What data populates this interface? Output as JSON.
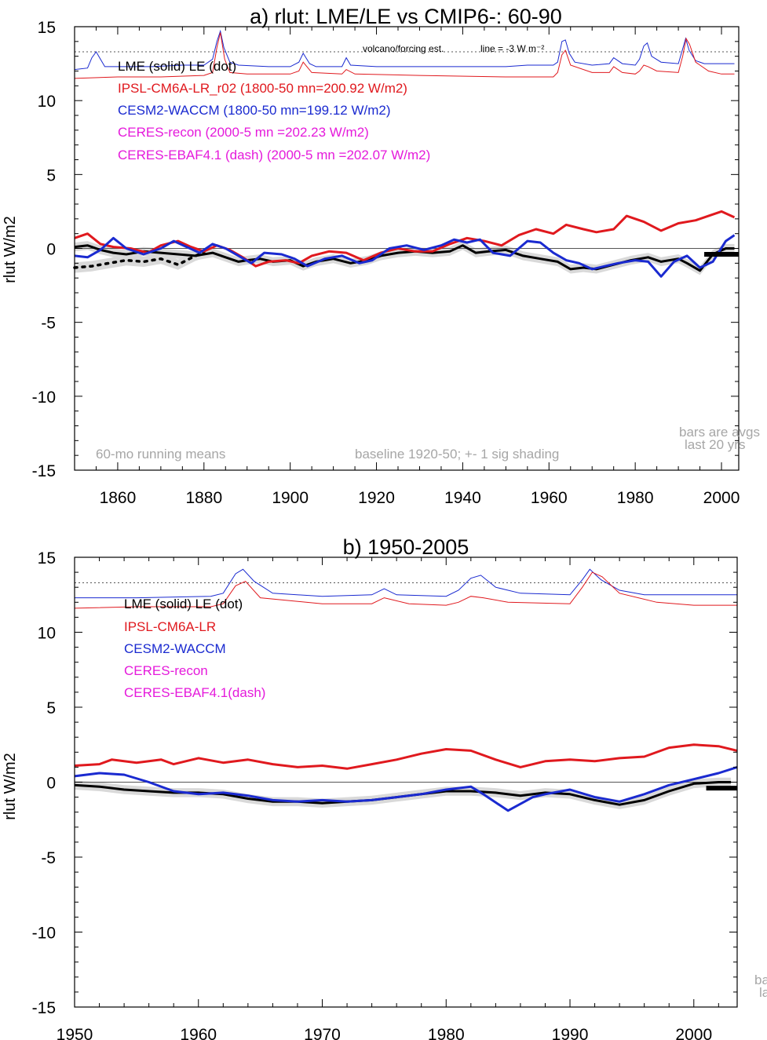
{
  "colors": {
    "lme": "#000000",
    "ipsl": "#e0191e",
    "cesm": "#1a2ad0",
    "ceres": "#e51adb",
    "shade": "#d9d9d9",
    "note": "#a6a6a6"
  },
  "chart_data": [
    {
      "type": "line",
      "title": "a) rlut: LME/LE vs CMIP6-: 60-90",
      "ylabel": "rlut W/m2",
      "xlim": [
        1850,
        2004
      ],
      "ylim": [
        -15,
        15
      ],
      "x_ticks": [
        1860,
        1880,
        1900,
        1920,
        1940,
        1960,
        1980,
        2000
      ],
      "y_ticks": [
        15,
        10,
        5,
        0,
        -5,
        -10,
        -15
      ],
      "x_tick_labels": [
        "1860",
        "1880",
        "1900",
        "1920",
        "1940",
        "1960",
        "1980",
        "2000"
      ],
      "y_tick_labels": [
        "15",
        "10",
        "5",
        "0",
        "-5",
        "-10",
        "-15"
      ],
      "legend": [
        {
          "text": "LME (solid)   LE (dot)",
          "color": "#000000"
        },
        {
          "text": "IPSL-CM6A-LR_r02 (1800-50 mn=200.92 W/m2)",
          "color": "#e0191e"
        },
        {
          "text": "CESM2-WACCM (1800-50 mn=199.12 W/m2)",
          "color": "#1a2ad0"
        },
        {
          "text": "CERES-recon (2000-5 mn =202.23 W/m2)",
          "color": "#e51adb"
        },
        {
          "text": "CERES-EBAF4.1 (dash) (2000-5 mn =202.07 W/m2)",
          "color": "#e51adb"
        }
      ],
      "annotations": {
        "volcano": "volcano/forcing est.",
        "line_note": "line = -3 W m⁻²",
        "running": "60-mo running means",
        "baseline": "baseline 1920-50; +- 1 sig shading",
        "bars1": "bars are avgs",
        "bars2": "last 20 yrs"
      },
      "dotted_reference_y": 13.3,
      "zero_line": 0,
      "series": [
        {
          "name": "LME",
          "color": "#000000",
          "x": [
            1850,
            1853,
            1856,
            1859,
            1862,
            1866,
            1870,
            1874,
            1878,
            1882,
            1885,
            1888,
            1890,
            1893,
            1896,
            1900,
            1903,
            1906,
            1910,
            1914,
            1918,
            1921,
            1925,
            1929,
            1933,
            1937,
            1940,
            1943,
            1946,
            1950,
            1954,
            1958,
            1962,
            1965,
            1968,
            1971,
            1975,
            1979,
            1983,
            1986,
            1990,
            1992,
            1995,
            1998,
            2001,
            2003
          ],
          "y": [
            0.1,
            0.2,
            -0.1,
            -0.3,
            -0.4,
            -0.2,
            -0.3,
            -0.4,
            -0.5,
            -0.3,
            -0.6,
            -0.9,
            -0.8,
            -0.7,
            -0.9,
            -0.8,
            -1.2,
            -0.9,
            -0.7,
            -1.0,
            -0.8,
            -0.5,
            -0.3,
            -0.2,
            -0.3,
            -0.2,
            0.2,
            -0.3,
            -0.2,
            -0.1,
            -0.5,
            -0.7,
            -0.9,
            -1.4,
            -1.3,
            -1.4,
            -1.1,
            -0.8,
            -0.6,
            -0.9,
            -0.7,
            -1.0,
            -1.5,
            -0.4,
            0.0,
            0.0
          ]
        },
        {
          "name": "LE",
          "color": "#000000",
          "x": [
            1850,
            1854,
            1858,
            1862,
            1866,
            1870,
            1874,
            1878,
            1880
          ],
          "y": [
            -1.3,
            -1.2,
            -1.0,
            -0.8,
            -0.9,
            -0.7,
            -1.1,
            -0.5,
            -0.3
          ]
        },
        {
          "name": "IPSL-CM6A-LR_r02",
          "color": "#e0191e",
          "x": [
            1850,
            1853,
            1856,
            1859,
            1863,
            1867,
            1870,
            1874,
            1877,
            1880,
            1883,
            1886,
            1889,
            1892,
            1895,
            1899,
            1902,
            1905,
            1909,
            1913,
            1917,
            1921,
            1925,
            1929,
            1933,
            1937,
            1941,
            1945,
            1949,
            1953,
            1957,
            1961,
            1964,
            1968,
            1971,
            1975,
            1978,
            1982,
            1986,
            1990,
            1994,
            1997,
            2000,
            2003
          ],
          "y": [
            0.7,
            1.0,
            0.3,
            0.1,
            0.0,
            -0.3,
            0.2,
            0.5,
            0.1,
            -0.2,
            0.2,
            -0.1,
            -0.6,
            -1.2,
            -0.9,
            -0.8,
            -1.0,
            -0.5,
            -0.2,
            -0.3,
            -0.8,
            -0.3,
            0.0,
            -0.2,
            -0.2,
            0.3,
            0.7,
            0.5,
            0.2,
            0.9,
            1.3,
            1.0,
            1.6,
            1.3,
            1.1,
            1.3,
            2.2,
            1.8,
            1.2,
            1.7,
            1.9,
            2.2,
            2.5,
            2.1
          ]
        },
        {
          "name": "CESM2-WACCM",
          "color": "#1a2ad0",
          "x": [
            1850,
            1853,
            1856,
            1859,
            1862,
            1866,
            1870,
            1873,
            1876,
            1879,
            1882,
            1885,
            1888,
            1891,
            1894,
            1898,
            1901,
            1904,
            1908,
            1912,
            1916,
            1919,
            1923,
            1927,
            1931,
            1935,
            1938,
            1941,
            1944,
            1947,
            1951,
            1955,
            1958,
            1961,
            1964,
            1967,
            1970,
            1973,
            1976,
            1980,
            1983,
            1986,
            1989,
            1992,
            1995,
            1998,
            2001,
            2003
          ],
          "y": [
            -0.5,
            -0.6,
            -0.1,
            0.7,
            0.0,
            -0.4,
            0.0,
            0.5,
            0.1,
            -0.3,
            0.3,
            0.0,
            -0.5,
            -1.0,
            -0.3,
            -0.4,
            -0.7,
            -1.2,
            -0.7,
            -0.5,
            -1.0,
            -0.8,
            0.0,
            0.2,
            -0.1,
            0.2,
            0.6,
            0.4,
            0.6,
            -0.3,
            -0.5,
            0.5,
            0.4,
            -0.3,
            -0.8,
            -1.0,
            -1.4,
            -1.2,
            -1.0,
            -0.8,
            -0.9,
            -1.9,
            -0.9,
            -0.5,
            -1.3,
            -0.9,
            0.5,
            0.9
          ]
        }
      ],
      "forcing_series": [
        {
          "name": "CESM2-WACCM forcing",
          "color": "#1a2ad0",
          "x": [
            1850,
            1853,
            1854,
            1855,
            1857,
            1862,
            1868,
            1875,
            1880,
            1882,
            1883,
            1883.8,
            1884.6,
            1886,
            1888,
            1895,
            1900,
            1902,
            1903,
            1904.5,
            1906,
            1912,
            1913,
            1914,
            1920,
            1940,
            1950,
            1955,
            1961,
            1962,
            1963,
            1963.8,
            1964.7,
            1966,
            1970,
            1974,
            1975,
            1977,
            1980,
            1981,
            1982,
            1982.8,
            1983.8,
            1986,
            1990,
            1991,
            1991.7,
            1992.5,
            1994,
            1996,
            2000,
            2003
          ],
          "y": [
            12.1,
            12.2,
            12.9,
            13.3,
            12.3,
            12.3,
            12.3,
            12.4,
            12.4,
            12.8,
            14.0,
            14.7,
            13.6,
            12.6,
            12.4,
            12.3,
            12.3,
            12.6,
            13.2,
            12.5,
            12.3,
            12.3,
            12.9,
            12.4,
            12.3,
            12.3,
            12.3,
            12.4,
            12.4,
            12.6,
            14.0,
            14.1,
            13.2,
            12.6,
            12.4,
            12.5,
            12.9,
            12.5,
            12.4,
            12.8,
            13.7,
            13.9,
            13.0,
            12.6,
            12.5,
            13.5,
            14.2,
            13.4,
            12.7,
            12.5,
            12.5,
            12.5
          ]
        },
        {
          "name": "IPSL-CM6A-LR forcing",
          "color": "#e0191e",
          "x": [
            1850,
            1860,
            1870,
            1880,
            1882,
            1883,
            1883.8,
            1884.8,
            1886,
            1890,
            1900,
            1902,
            1903,
            1905,
            1912,
            1913,
            1915,
            1930,
            1950,
            1961,
            1962,
            1963,
            1963.8,
            1965,
            1970,
            1974,
            1975,
            1977,
            1980,
            1981,
            1982,
            1983,
            1985,
            1990,
            1991,
            1991.8,
            1992.6,
            1994,
            1997,
            2000,
            2003
          ],
          "y": [
            11.5,
            11.6,
            11.6,
            11.7,
            11.9,
            13.6,
            14.6,
            12.8,
            11.9,
            11.8,
            11.8,
            12.0,
            12.6,
            11.9,
            11.8,
            12.1,
            11.8,
            11.7,
            11.6,
            11.6,
            11.9,
            13.1,
            13.4,
            12.4,
            11.9,
            11.9,
            12.3,
            11.9,
            11.8,
            12.0,
            12.4,
            12.3,
            12.0,
            11.9,
            13.0,
            14.2,
            13.8,
            12.6,
            12.0,
            11.8,
            11.8
          ]
        }
      ],
      "bar": {
        "x_start": 1996,
        "x_end": 2004,
        "y": -0.4,
        "color": "#000000"
      },
      "shading": {
        "lme_sigma": 0.3,
        "le_sigma": 0.35,
        "color": "#d9d9d9"
      }
    },
    {
      "type": "line",
      "title": "b) 1950-2005",
      "ylabel": "rlut W/m2",
      "xlim": [
        1950,
        2003.5
      ],
      "ylim": [
        -15,
        15
      ],
      "x_ticks": [
        1950,
        1960,
        1970,
        1980,
        1990,
        2000
      ],
      "y_ticks": [
        15,
        10,
        5,
        0,
        -5,
        -10,
        -15
      ],
      "x_tick_labels": [
        "1950",
        "1960",
        "1970",
        "1980",
        "1990",
        "2000"
      ],
      "y_tick_labels": [
        "15",
        "10",
        "5",
        "0",
        "-5",
        "-10",
        "-15"
      ],
      "legend": [
        {
          "text": "LME (solid)      LE (dot)",
          "color": "#000000"
        },
        {
          "text": "IPSL-CM6A-LR",
          "color": "#e0191e"
        },
        {
          "text": "CESM2-WACCM",
          "color": "#1a2ad0"
        },
        {
          "text": "CERES-recon",
          "color": "#e51adb"
        },
        {
          "text": "CERES-EBAF4.1(dash)",
          "color": "#e51adb"
        }
      ],
      "annotations": {
        "bars1": "ba",
        "bars2": "la"
      },
      "dotted_reference_y": 13.3,
      "zero_line": 0,
      "series": [
        {
          "name": "LME",
          "color": "#000000",
          "x": [
            1950,
            1952,
            1954,
            1956,
            1958,
            1960,
            1962,
            1964,
            1966,
            1968,
            1970,
            1972,
            1974,
            1976,
            1978,
            1980,
            1982,
            1984,
            1986,
            1988,
            1990,
            1992,
            1994,
            1996,
            1998,
            2000,
            2002,
            2003
          ],
          "y": [
            -0.2,
            -0.3,
            -0.5,
            -0.6,
            -0.7,
            -0.7,
            -0.8,
            -1.1,
            -1.3,
            -1.3,
            -1.4,
            -1.3,
            -1.2,
            -1.0,
            -0.8,
            -0.6,
            -0.6,
            -0.7,
            -0.9,
            -0.7,
            -0.8,
            -1.2,
            -1.5,
            -1.2,
            -0.6,
            -0.1,
            0.0,
            0.0
          ]
        },
        {
          "name": "IPSL-CM6A-LR",
          "color": "#e0191e",
          "x": [
            1950,
            1952,
            1953,
            1955,
            1957,
            1958,
            1960,
            1962,
            1964,
            1966,
            1968,
            1970,
            1972,
            1974,
            1976,
            1978,
            1980,
            1982,
            1984,
            1986,
            1988,
            1990,
            1992,
            1994,
            1996,
            1998,
            2000,
            2002,
            2003.5
          ],
          "y": [
            1.1,
            1.2,
            1.5,
            1.3,
            1.5,
            1.2,
            1.6,
            1.3,
            1.5,
            1.2,
            1.0,
            1.1,
            0.9,
            1.2,
            1.5,
            1.9,
            2.2,
            2.1,
            1.5,
            1.0,
            1.4,
            1.5,
            1.4,
            1.6,
            1.7,
            2.3,
            2.5,
            2.4,
            2.1
          ]
        },
        {
          "name": "CESM2-WACCM",
          "color": "#1a2ad0",
          "x": [
            1950,
            1952,
            1954,
            1956,
            1958,
            1960,
            1962,
            1964,
            1966,
            1968,
            1970,
            1972,
            1974,
            1976,
            1978,
            1980,
            1982,
            1983,
            1985,
            1987,
            1988,
            1990,
            1992,
            1994,
            1996,
            1998,
            2000,
            2002,
            2003.5
          ],
          "y": [
            0.4,
            0.6,
            0.5,
            0.0,
            -0.6,
            -0.8,
            -0.7,
            -0.9,
            -1.2,
            -1.3,
            -1.2,
            -1.3,
            -1.2,
            -1.0,
            -0.8,
            -0.5,
            -0.3,
            -0.8,
            -1.9,
            -1.0,
            -0.8,
            -0.5,
            -1.0,
            -1.3,
            -0.8,
            -0.2,
            0.2,
            0.6,
            1.0
          ]
        }
      ],
      "forcing_series": [
        {
          "name": "CESM2-WACCM forcing",
          "color": "#1a2ad0",
          "x": [
            1950,
            1955,
            1961,
            1962,
            1963,
            1963.6,
            1964.5,
            1966,
            1970,
            1974,
            1975,
            1976,
            1980,
            1981,
            1982,
            1982.8,
            1984,
            1986,
            1990,
            1991,
            1991.6,
            1992.5,
            1994,
            1996,
            2000,
            2003.5
          ],
          "y": [
            12.3,
            12.3,
            12.4,
            12.6,
            13.9,
            14.2,
            13.4,
            12.6,
            12.4,
            12.5,
            12.9,
            12.5,
            12.4,
            12.8,
            13.6,
            13.8,
            13.0,
            12.6,
            12.5,
            13.5,
            14.2,
            13.5,
            12.8,
            12.5,
            12.5,
            12.5
          ]
        },
        {
          "name": "IPSL-CM6A-LR forcing",
          "color": "#e0191e",
          "x": [
            1950,
            1955,
            1961,
            1962,
            1963,
            1963.8,
            1965,
            1970,
            1974,
            1975,
            1977,
            1980,
            1981,
            1982,
            1983,
            1985,
            1990,
            1991,
            1991.8,
            1992.6,
            1994,
            1997,
            2000,
            2003.5
          ],
          "y": [
            11.6,
            11.7,
            11.7,
            11.9,
            13.1,
            13.4,
            12.3,
            11.9,
            11.9,
            12.3,
            11.9,
            11.8,
            12.0,
            12.4,
            12.3,
            12.0,
            11.9,
            13.0,
            14.0,
            13.7,
            12.6,
            12.0,
            11.8,
            11.8
          ]
        }
      ],
      "bar": {
        "x_start": 2001,
        "x_end": 2003.5,
        "y": -0.4,
        "color": "#000000"
      },
      "shading": {
        "lme_sigma": 0.3,
        "le_sigma": 0.35,
        "color": "#d9d9d9"
      }
    }
  ]
}
